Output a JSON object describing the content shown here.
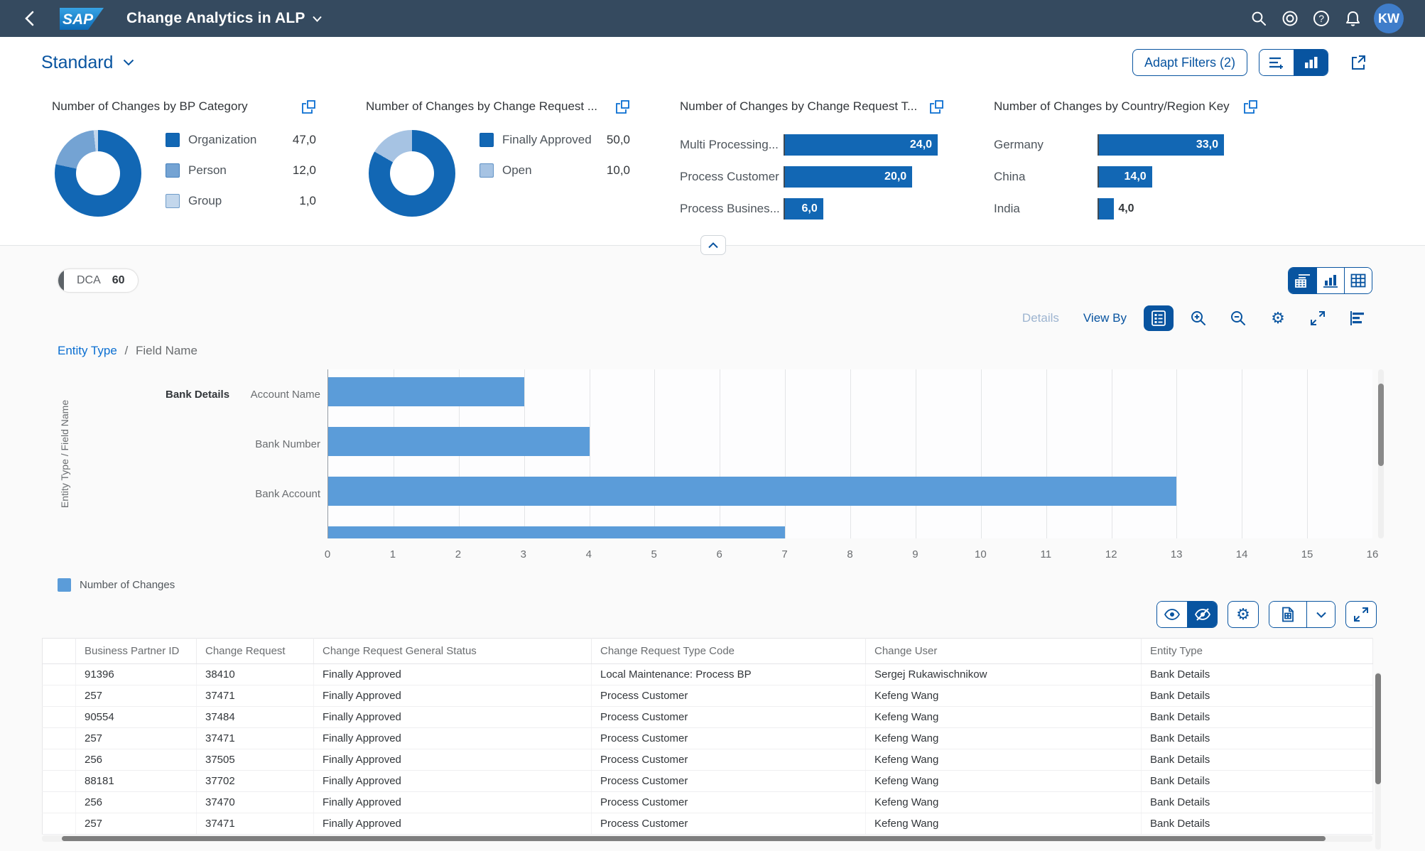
{
  "shell": {
    "product": "SAP",
    "title": "Change Analytics in ALP",
    "avatar": "KW"
  },
  "filter_bar": {
    "variant": "Standard",
    "adapt_filters": "Adapt Filters (2)"
  },
  "kpi_cards": [
    {
      "title": "Number of Changes by BP Category",
      "type": "donut",
      "items": [
        {
          "label": "Organization",
          "value": 47,
          "display": "47,0",
          "color": "#1267b4",
          "inside": true
        },
        {
          "label": "Person",
          "value": 12,
          "display": "12,0",
          "color": "#74a3d3",
          "inside": true
        },
        {
          "label": "Group",
          "value": 1,
          "display": "1,0",
          "color": "#c3d7ec",
          "inside": true
        }
      ]
    },
    {
      "title": "Number of Changes by Change Request ...",
      "type": "donut",
      "items": [
        {
          "label": "Finally Approved",
          "value": 50,
          "display": "50,0",
          "color": "#1267b4",
          "inside": true
        },
        {
          "label": "Open",
          "value": 10,
          "display": "10,0",
          "color": "#a6c3e3",
          "inside": true
        }
      ]
    },
    {
      "title": "Number of Changes by Change Request T...",
      "type": "bar",
      "max": 25,
      "items": [
        {
          "label": "Multi Processing...",
          "value": 24,
          "display": "24,0",
          "inside": true
        },
        {
          "label": "Process Customer",
          "value": 20,
          "display": "20,0",
          "inside": true
        },
        {
          "label": "Process Busines...",
          "value": 6,
          "display": "6,0",
          "inside": true
        }
      ]
    },
    {
      "title": "Number of Changes by Country/Region Key",
      "type": "bar",
      "max": 42,
      "items": [
        {
          "label": "Germany",
          "value": 33,
          "display": "33,0",
          "inside": true
        },
        {
          "label": "China",
          "value": 14,
          "display": "14,0",
          "inside": true
        },
        {
          "label": "India",
          "value": 4,
          "display": "4,0",
          "inside": false
        }
      ]
    }
  ],
  "content_header": {
    "chip_label": "DCA",
    "chip_count": "60"
  },
  "chart_toolbar": {
    "details": "Details",
    "view_by": "View By"
  },
  "breadcrumb": {
    "link": "Entity Type",
    "separator": "/",
    "current": "Field Name"
  },
  "chart_data": {
    "type": "bar",
    "orientation": "horizontal",
    "group_label": "Bank Details",
    "categories": [
      "Account Name",
      "Bank Number",
      "Bank Account"
    ],
    "values": [
      3,
      4,
      13
    ],
    "partial_next_value": 7,
    "xlim": [
      0,
      16
    ],
    "x_ticks": [
      "0",
      "1",
      "2",
      "3",
      "4",
      "5",
      "6",
      "7",
      "8",
      "9",
      "10",
      "11",
      "12",
      "13",
      "14",
      "15",
      "16"
    ],
    "ylabel": "Entity Type / Field Name",
    "bar_color": "#5b9cd9",
    "grid": true,
    "legend": [
      {
        "label": "Number of Changes",
        "color": "#5b9cd9"
      }
    ],
    "legend_position": "bottom"
  },
  "table": {
    "columns": [
      "Business Partner ID",
      "Change Request",
      "Change Request General Status",
      "Change Request Type Code",
      "Change User",
      "Entity Type"
    ],
    "rows": [
      [
        "91396",
        "38410",
        "Finally Approved",
        "Local Maintenance: Process BP",
        "Sergej Rukawischnikow",
        "Bank Details"
      ],
      [
        "257",
        "37471",
        "Finally Approved",
        "Process Customer",
        "Kefeng Wang",
        "Bank Details"
      ],
      [
        "90554",
        "37484",
        "Finally Approved",
        "Process Customer",
        "Kefeng Wang",
        "Bank Details"
      ],
      [
        "257",
        "37471",
        "Finally Approved",
        "Process Customer",
        "Kefeng Wang",
        "Bank Details"
      ],
      [
        "256",
        "37505",
        "Finally Approved",
        "Process Customer",
        "Kefeng Wang",
        "Bank Details"
      ],
      [
        "88181",
        "37702",
        "Finally Approved",
        "Process Customer",
        "Kefeng Wang",
        "Bank Details"
      ],
      [
        "256",
        "37470",
        "Finally Approved",
        "Process Customer",
        "Kefeng Wang",
        "Bank Details"
      ],
      [
        "257",
        "37471",
        "Finally Approved",
        "Process Customer",
        "Kefeng Wang",
        "Bank Details"
      ]
    ]
  },
  "colors": {
    "shell": "#354a5f",
    "accent": "#0854a0",
    "link": "#0a6ed1",
    "kpi_dark": "#1267b4",
    "chart_bar": "#5b9cd9"
  }
}
